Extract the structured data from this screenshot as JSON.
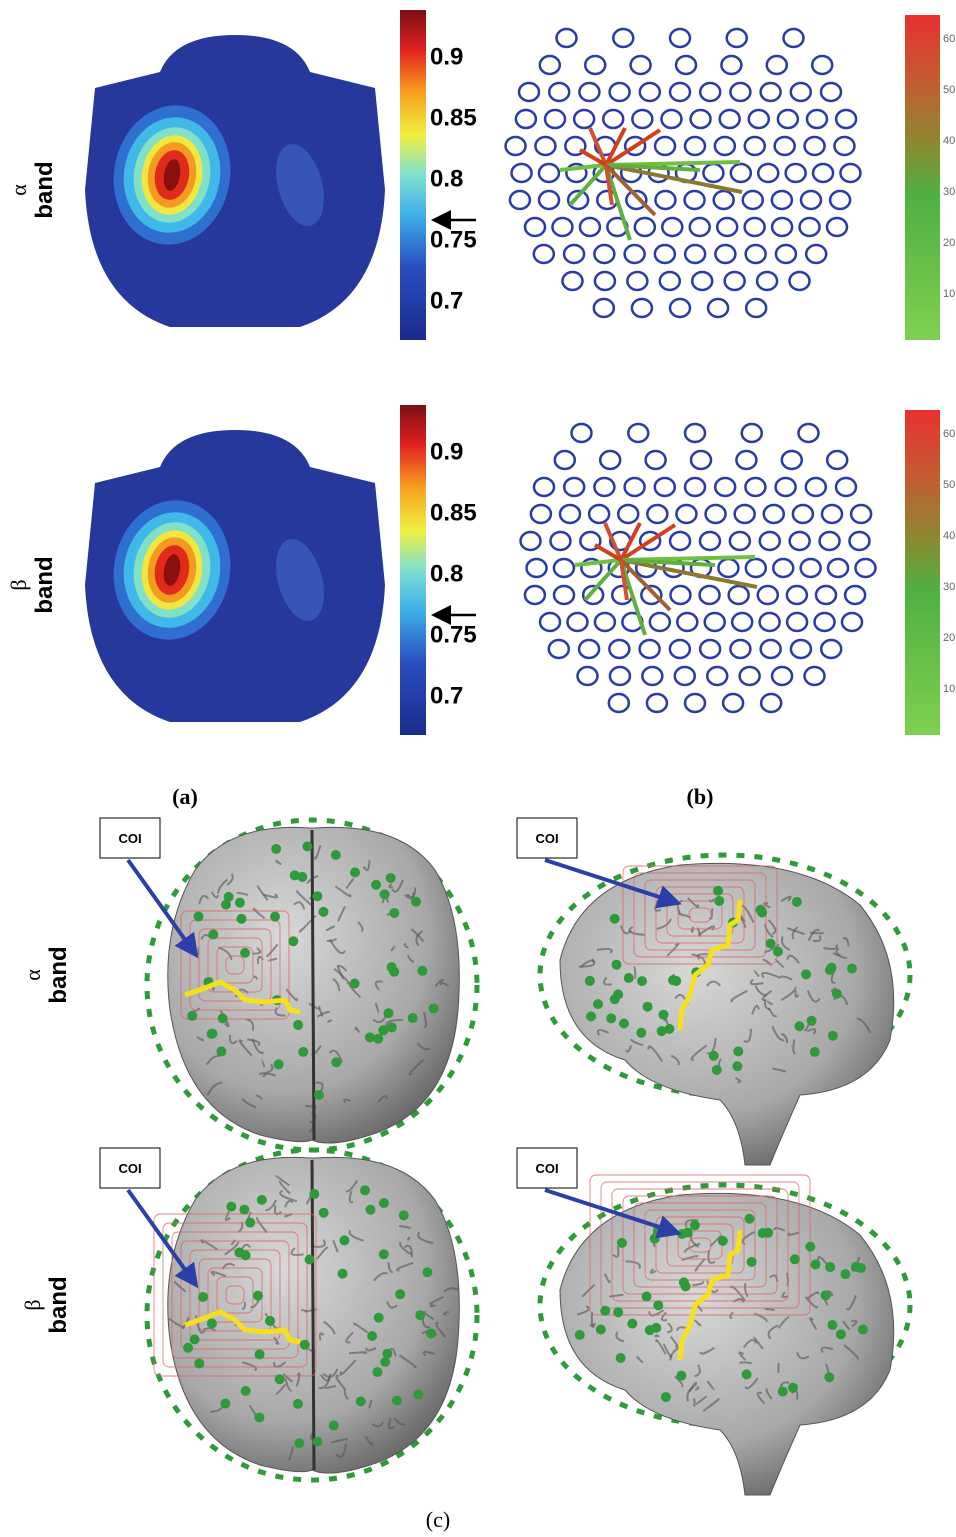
{
  "panels": {
    "a": {
      "label": "(a)",
      "rows": [
        {
          "greek": "α",
          "band": "band",
          "colorbar_ticks": [
            0.9,
            0.85,
            0.8,
            0.75,
            0.7
          ]
        },
        {
          "greek": "β",
          "band": "band",
          "colorbar_ticks": [
            0.9,
            0.85,
            0.8,
            0.75,
            0.7
          ]
        }
      ]
    },
    "b": {
      "label": "(b)",
      "rows": [
        {
          "colorbar_ticks": [
            60,
            50,
            40,
            30,
            20,
            10
          ]
        },
        {
          "colorbar_ticks": [
            60,
            50,
            40,
            30,
            20,
            10
          ]
        }
      ]
    },
    "c": {
      "label": "(c)",
      "rows": [
        {
          "greek": "α",
          "band": "band",
          "callouts": [
            "COI",
            "COI"
          ]
        },
        {
          "greek": "β",
          "band": "band",
          "callouts": [
            "COI",
            "COI"
          ]
        }
      ]
    }
  }
}
